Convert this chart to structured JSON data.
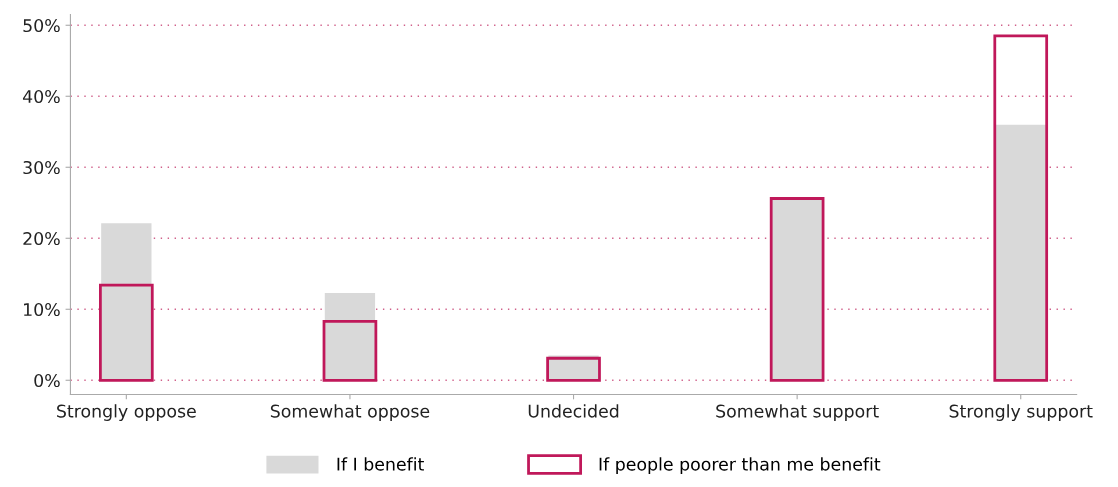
{
  "chart_data": {
    "type": "bar",
    "categories": [
      "Strongly oppose",
      "Somewhat oppose",
      "Undecided",
      "Somewhat support",
      "Strongly support"
    ],
    "series": [
      {
        "name": "If I benefit",
        "color": "#d9d9d9",
        "values": [
          22.1,
          12.3,
          3.5,
          25.4,
          36.0
        ]
      },
      {
        "name": "If people poorer than me benefit",
        "color": "#c0185a",
        "values": [
          13.4,
          8.3,
          3.1,
          25.6,
          48.5
        ]
      }
    ],
    "ylim": [
      -2,
      51.5
    ],
    "yticks": [
      {
        "value": 0,
        "label": "0%"
      },
      {
        "value": 10,
        "label": "10%"
      },
      {
        "value": 20,
        "label": "20%"
      },
      {
        "value": 30,
        "label": "30%"
      },
      {
        "value": 40,
        "label": "40%"
      },
      {
        "value": 50,
        "label": "50%"
      }
    ],
    "grid": "y",
    "legend": "bottom"
  }
}
